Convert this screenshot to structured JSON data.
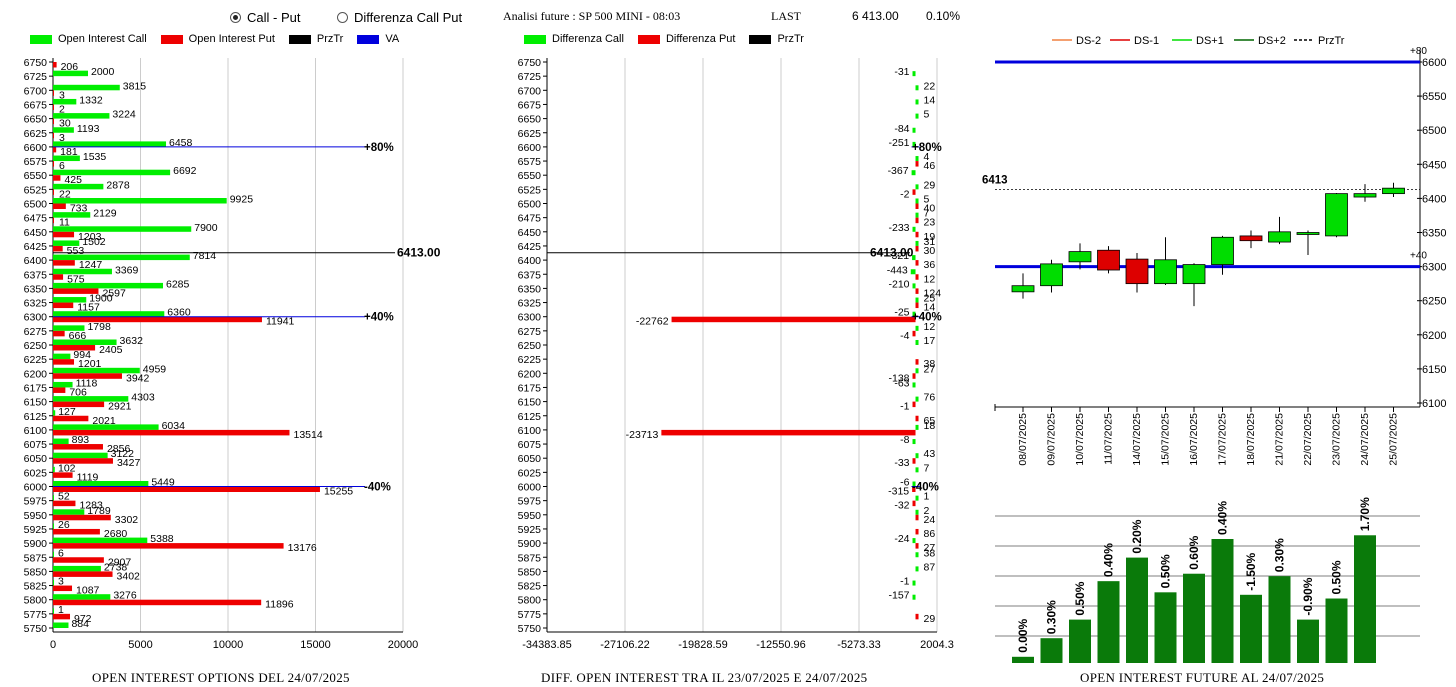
{
  "header": {
    "radio_call_put": "Call - Put",
    "radio_diff": "Differenza Call Put",
    "radio_selected": "call-put",
    "title": "Analisi future : SP 500 MINI - 08:03",
    "last_label": "LAST",
    "last_value": "6 413.00",
    "last_pct": "0.10%"
  },
  "colors": {
    "call": "#00ee00",
    "put": "#ee0000",
    "prztr": "#000000",
    "va": "#0000dd",
    "future_bar": "#0a7a0a"
  },
  "chart_data": [
    {
      "id": "oi-options",
      "type": "bar",
      "orientation": "horizontal",
      "footer": "OPEN INTEREST OPTIONS DEL 24/07/2025",
      "legend": [
        "Open Interest Call",
        "Open Interest Put",
        "PrzTr",
        "VA"
      ],
      "categories": [
        6750,
        6725,
        6700,
        6675,
        6650,
        6625,
        6600,
        6575,
        6550,
        6525,
        6500,
        6475,
        6450,
        6425,
        6400,
        6375,
        6350,
        6325,
        6300,
        6275,
        6250,
        6225,
        6200,
        6175,
        6150,
        6125,
        6100,
        6075,
        6050,
        6025,
        6000,
        5975,
        5950,
        5925,
        5900,
        5875,
        5850,
        5825,
        5800,
        5775,
        5750
      ],
      "series": [
        {
          "name": "Open Interest Call",
          "values": [
            null,
            2000,
            3815,
            1332,
            3224,
            1193,
            6458,
            1535,
            6692,
            2878,
            9925,
            2129,
            7900,
            1502,
            7814,
            3369,
            6285,
            1900,
            6360,
            1798,
            3632,
            994,
            4959,
            1118,
            4303,
            127,
            6034,
            893,
            3122,
            102,
            5449,
            52,
            1789,
            26,
            5388,
            6,
            2738,
            3,
            3276,
            1,
            884
          ]
        },
        {
          "name": "Open Interest Put",
          "values": [
            206,
            null,
            3,
            2,
            30,
            3,
            181,
            6,
            425,
            22,
            733,
            11,
            1203,
            553,
            1247,
            575,
            2597,
            1157,
            11941,
            666,
            2405,
            1201,
            3942,
            706,
            2921,
            2021,
            13514,
            2856,
            3427,
            1119,
            15255,
            1283,
            3302,
            2680,
            13176,
            2907,
            3402,
            1087,
            11896,
            972,
            null
          ]
        }
      ],
      "xticks": [
        "0",
        "5000",
        "10000",
        "15000",
        "20000"
      ],
      "xlim": [
        0,
        20000
      ],
      "prztr": {
        "value": 6413,
        "label": "6413.00"
      },
      "va_lines": [
        {
          "strike": 6600,
          "label": "+80%"
        },
        {
          "strike": 6300,
          "label": "+40%"
        },
        {
          "strike": 6000,
          "label": "-40%"
        }
      ]
    },
    {
      "id": "diff-oi",
      "type": "bar",
      "orientation": "horizontal",
      "footer": "DIFF. OPEN INTEREST TRA IL 23/07/2025 E 24/07/2025",
      "legend": [
        "Differenza Call",
        "Differenza Put",
        "PrzTr"
      ],
      "categories": [
        6750,
        6725,
        6700,
        6675,
        6650,
        6625,
        6600,
        6575,
        6550,
        6525,
        6500,
        6475,
        6450,
        6425,
        6400,
        6375,
        6350,
        6325,
        6300,
        6275,
        6250,
        6225,
        6200,
        6175,
        6150,
        6125,
        6100,
        6075,
        6050,
        6025,
        6000,
        5975,
        5950,
        5925,
        5900,
        5875,
        5850,
        5825,
        5800,
        5775,
        5750
      ],
      "series": [
        {
          "name": "Differenza Call",
          "values": [
            null,
            -31,
            22,
            14,
            5,
            -84,
            -251,
            4,
            -367,
            29,
            5,
            7,
            -233,
            31,
            -321,
            -443,
            -210,
            25,
            -25,
            12,
            17,
            null,
            27,
            -63,
            76,
            null,
            18,
            -8,
            43,
            7,
            -6,
            1,
            2,
            null,
            -24,
            38,
            87,
            -1,
            -157,
            null,
            null
          ]
        },
        {
          "name": "Differenza Put",
          "values": [
            null,
            null,
            null,
            null,
            null,
            null,
            null,
            46,
            null,
            -2,
            40,
            23,
            19,
            30,
            36,
            12,
            124,
            14,
            -22762,
            -4,
            null,
            38,
            -138,
            null,
            -1,
            65,
            -23713,
            null,
            -33,
            null,
            -315,
            -32,
            24,
            86,
            27,
            null,
            null,
            null,
            null,
            29,
            null
          ]
        }
      ],
      "xticks": [
        "-34383.85",
        "-27106.22",
        "-19828.59",
        "-12550.96",
        "-5273.33",
        "2004.3"
      ],
      "xlim": [
        -34383.85,
        2004.3
      ],
      "prztr": {
        "value": 6413,
        "label": "6413.00"
      },
      "markers": [
        {
          "strike": 6600,
          "label": "+80%"
        },
        {
          "strike": 6300,
          "label": "+40%"
        },
        {
          "strike": 6000,
          "label": "-40%"
        }
      ]
    },
    {
      "id": "candles",
      "type": "candlestick",
      "legend": [
        "DS-2",
        "DS-1",
        "DS+1",
        "DS+2",
        "PrzTr"
      ],
      "legend_colors": [
        "#f08040",
        "#dd0000",
        "#00dd00",
        "#006600",
        "#000000"
      ],
      "dates": [
        "08/07/2025",
        "09/07/2025",
        "10/07/2025",
        "11/07/2025",
        "14/07/2025",
        "15/07/2025",
        "16/07/2025",
        "17/07/2025",
        "18/07/2025",
        "21/07/2025",
        "22/07/2025",
        "23/07/2025",
        "24/07/2025",
        "25/07/2025"
      ],
      "ohlc": [
        [
          6263,
          6290,
          6253,
          6272
        ],
        [
          6272,
          6310,
          6262,
          6304
        ],
        [
          6307,
          6334,
          6296,
          6322
        ],
        [
          6324,
          6330,
          6290,
          6295
        ],
        [
          6311,
          6320,
          6262,
          6275
        ],
        [
          6275,
          6343,
          6273,
          6310
        ],
        [
          6275,
          6305,
          6242,
          6303
        ],
        [
          6303,
          6345,
          6288,
          6343
        ],
        [
          6345,
          6353,
          6327,
          6338
        ],
        [
          6336,
          6373,
          6333,
          6351
        ],
        [
          6348,
          6353,
          6317,
          6350
        ],
        [
          6345,
          6408,
          6343,
          6407
        ],
        [
          6402,
          6421,
          6395,
          6407
        ],
        [
          6407,
          6423,
          6402,
          6415
        ]
      ],
      "ylim": [
        6100,
        6600
      ],
      "yticks": [
        "6600",
        "6550",
        "6500",
        "6450",
        "6400",
        "6350",
        "6300",
        "6250",
        "6200",
        "6150",
        "6100"
      ],
      "last_label": "6413",
      "last_value": 6413,
      "blue_lines": [
        {
          "value": 6600,
          "label": "+80"
        },
        {
          "value": 6300,
          "label": "+40"
        }
      ]
    },
    {
      "id": "oi-future",
      "type": "bar",
      "footer": "OPEN INTEREST FUTURE AL 24/07/2025",
      "values": [
        0.0,
        0.3,
        0.5,
        0.4,
        0.2,
        0.5,
        0.6,
        0.4,
        -1.5,
        0.3,
        -0.9,
        0.5,
        1.7
      ],
      "labels": [
        "0.00%",
        "0.30%",
        "0.50%",
        "0.40%",
        "0.20%",
        "0.50%",
        "0.60%",
        "0.40%",
        "-1.50%",
        "0.30%",
        "-0.90%",
        "0.50%",
        "1.70%"
      ],
      "levels": [
        0.05,
        0.2,
        0.35,
        0.66,
        0.85,
        0.57,
        0.72,
        1.0,
        0.55,
        0.7,
        0.35,
        0.52,
        1.03
      ]
    }
  ]
}
